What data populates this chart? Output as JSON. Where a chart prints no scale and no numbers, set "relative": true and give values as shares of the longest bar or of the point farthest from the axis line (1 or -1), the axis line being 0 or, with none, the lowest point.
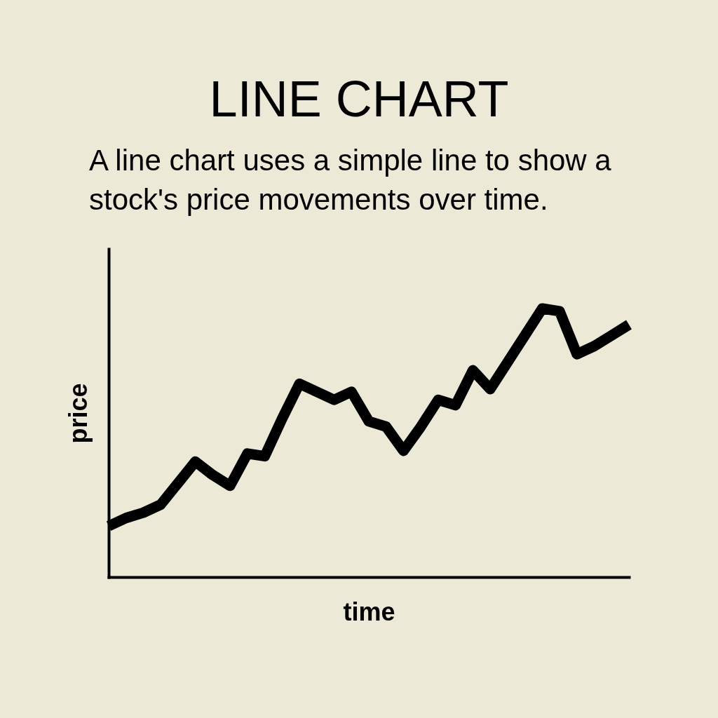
{
  "chart_data": {
    "type": "line",
    "title": "LINE CHART",
    "subtitle": "A line chart uses a simple line to show a stock's price movements over time.",
    "xlabel": "time",
    "ylabel": "price",
    "relative": true,
    "categories": [
      null,
      null,
      null,
      null,
      null,
      null,
      null,
      null,
      null,
      null,
      null,
      null,
      null,
      null,
      null,
      null,
      null,
      null,
      null,
      null,
      null,
      null,
      null,
      null,
      null,
      null,
      null,
      null,
      null,
      null,
      null
    ],
    "series": [
      {
        "color": "#000000",
        "values": [
          0.19,
          0.22,
          0.24,
          0.27,
          0.35,
          0.43,
          0.38,
          0.34,
          0.46,
          0.45,
          0.59,
          0.72,
          0.69,
          0.66,
          0.69,
          0.58,
          0.56,
          0.47,
          0.56,
          0.66,
          0.64,
          0.77,
          0.7,
          0.8,
          0.9,
          1,
          0.99,
          0.83,
          0.86,
          0.9,
          0.94
        ]
      }
    ]
  }
}
